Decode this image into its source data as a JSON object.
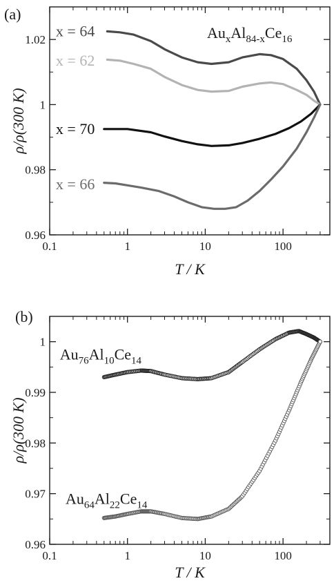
{
  "chart_data": [
    {
      "type": "line",
      "panel": "(a)",
      "title": "",
      "xlabel": "T / K",
      "ylabel": "ρ/ρ(300 K)",
      "xscale": "log",
      "xlim": [
        0.1,
        400
      ],
      "ylim": [
        0.96,
        1.03
      ],
      "x_ticks": [
        0.1,
        1,
        10,
        100
      ],
      "x_tick_labels": [
        "0.1",
        "1",
        "10",
        "100"
      ],
      "y_ticks": [
        0.96,
        0.98,
        1.0,
        1.02
      ],
      "y_tick_labels": [
        "0.96",
        "0.98",
        "1",
        "1.02"
      ],
      "grid": false,
      "legend": "none",
      "annotation": {
        "base": "Au",
        "sub1": "x",
        "mid": "Al",
        "sub2": "84-x",
        "end": "Ce",
        "sub3": "16",
        "position": "top-right"
      },
      "series": [
        {
          "label": "x = 64",
          "color": "#4a4a4a",
          "label_at": [
            0.12,
            1.0225
          ],
          "points": [
            [
              0.55,
              1.0225
            ],
            [
              0.8,
              1.0222
            ],
            [
              1.2,
              1.0215
            ],
            [
              2,
              1.0195
            ],
            [
              3,
              1.017
            ],
            [
              5,
              1.0145
            ],
            [
              8,
              1.013
            ],
            [
              12,
              1.0125
            ],
            [
              20,
              1.013
            ],
            [
              30,
              1.0145
            ],
            [
              50,
              1.0155
            ],
            [
              70,
              1.0152
            ],
            [
              100,
              1.014
            ],
            [
              150,
              1.011
            ],
            [
              200,
              1.0075
            ],
            [
              250,
              1.004
            ],
            [
              300,
              1.0
            ]
          ]
        },
        {
          "label": "x = 62",
          "color": "#b3b3b3",
          "label_at": [
            0.12,
            1.0135
          ],
          "points": [
            [
              0.55,
              1.0138
            ],
            [
              0.8,
              1.0135
            ],
            [
              1.2,
              1.0125
            ],
            [
              2,
              1.011
            ],
            [
              3,
              1.0085
            ],
            [
              5,
              1.006
            ],
            [
              8,
              1.0045
            ],
            [
              12,
              1.004
            ],
            [
              20,
              1.0042
            ],
            [
              30,
              1.0055
            ],
            [
              50,
              1.0065
            ],
            [
              70,
              1.0068
            ],
            [
              100,
              1.0063
            ],
            [
              150,
              1.0045
            ],
            [
              200,
              1.003
            ],
            [
              250,
              1.0012
            ],
            [
              300,
              1.0
            ]
          ]
        },
        {
          "label": "x = 70",
          "color": "#111111",
          "label_at": [
            0.12,
            0.9925
          ],
          "points": [
            [
              0.5,
              0.9925
            ],
            [
              1,
              0.9925
            ],
            [
              2,
              0.9915
            ],
            [
              3,
              0.9902
            ],
            [
              5,
              0.9888
            ],
            [
              8,
              0.9878
            ],
            [
              12,
              0.9873
            ],
            [
              20,
              0.9875
            ],
            [
              30,
              0.9882
            ],
            [
              50,
              0.9895
            ],
            [
              80,
              0.991
            ],
            [
              120,
              0.9928
            ],
            [
              170,
              0.9948
            ],
            [
              230,
              0.9972
            ],
            [
              300,
              1.0
            ]
          ]
        },
        {
          "label": "x = 66",
          "color": "#6b6b6b",
          "label_at": [
            0.12,
            0.9755
          ],
          "points": [
            [
              0.5,
              0.976
            ],
            [
              0.7,
              0.9758
            ],
            [
              1,
              0.9752
            ],
            [
              1.5,
              0.9745
            ],
            [
              2.5,
              0.9735
            ],
            [
              4,
              0.9718
            ],
            [
              6,
              0.97
            ],
            [
              9,
              0.9685
            ],
            [
              13,
              0.968
            ],
            [
              18,
              0.968
            ],
            [
              25,
              0.9685
            ],
            [
              35,
              0.9705
            ],
            [
              50,
              0.9735
            ],
            [
              70,
              0.977
            ],
            [
              100,
              0.981
            ],
            [
              150,
              0.9865
            ],
            [
              200,
              0.9915
            ],
            [
              250,
              0.996
            ],
            [
              300,
              1.0
            ]
          ]
        }
      ]
    },
    {
      "type": "scatter",
      "panel": "(b)",
      "title": "",
      "xlabel": "T / K",
      "ylabel": "ρ/ρ(300 K)",
      "xscale": "log",
      "xlim": [
        0.1,
        400
      ],
      "ylim": [
        0.96,
        1.005
      ],
      "x_ticks": [
        0.1,
        1,
        10,
        100
      ],
      "x_tick_labels": [
        "0.1",
        "1",
        "10",
        "100"
      ],
      "y_ticks": [
        0.96,
        0.97,
        0.98,
        0.99,
        1.0
      ],
      "y_tick_labels": [
        "0.96",
        "0.97",
        "0.98",
        "0.99",
        "1"
      ],
      "grid": false,
      "legend": "none",
      "series": [
        {
          "label": {
            "base": "Au",
            "sub1": "76",
            "mid": "Al",
            "sub2": "10",
            "end": "Ce",
            "sub3": "14"
          },
          "label_at": [
            0.135,
            0.9965
          ],
          "color": "#222222",
          "points": [
            [
              0.5,
              0.993
            ],
            [
              0.7,
              0.9935
            ],
            [
              1,
              0.994
            ],
            [
              1.5,
              0.9943
            ],
            [
              2,
              0.9942
            ],
            [
              3,
              0.9935
            ],
            [
              5,
              0.9928
            ],
            [
              8,
              0.9926
            ],
            [
              12,
              0.9928
            ],
            [
              20,
              0.994
            ],
            [
              30,
              0.996
            ],
            [
              50,
              0.9985
            ],
            [
              80,
              1.0005
            ],
            [
              120,
              1.0018
            ],
            [
              160,
              1.0021
            ],
            [
              200,
              1.0015
            ],
            [
              250,
              1.0008
            ],
            [
              300,
              1.0
            ]
          ]
        },
        {
          "label": {
            "base": "Au",
            "sub1": "64",
            "mid": "Al",
            "sub2": "22",
            "end": "Ce",
            "sub3": "14"
          },
          "label_at": [
            0.16,
            0.968
          ],
          "color": "#555555",
          "points": [
            [
              0.5,
              0.9652
            ],
            [
              0.7,
              0.9655
            ],
            [
              1,
              0.966
            ],
            [
              1.5,
              0.9665
            ],
            [
              2,
              0.9665
            ],
            [
              3,
              0.966
            ],
            [
              5,
              0.9652
            ],
            [
              8,
              0.965
            ],
            [
              12,
              0.9655
            ],
            [
              20,
              0.967
            ],
            [
              30,
              0.9695
            ],
            [
              50,
              0.9745
            ],
            [
              80,
              0.9805
            ],
            [
              120,
              0.9865
            ],
            [
              170,
              0.992
            ],
            [
              230,
              0.9965
            ],
            [
              300,
              1.0
            ]
          ]
        }
      ]
    }
  ]
}
